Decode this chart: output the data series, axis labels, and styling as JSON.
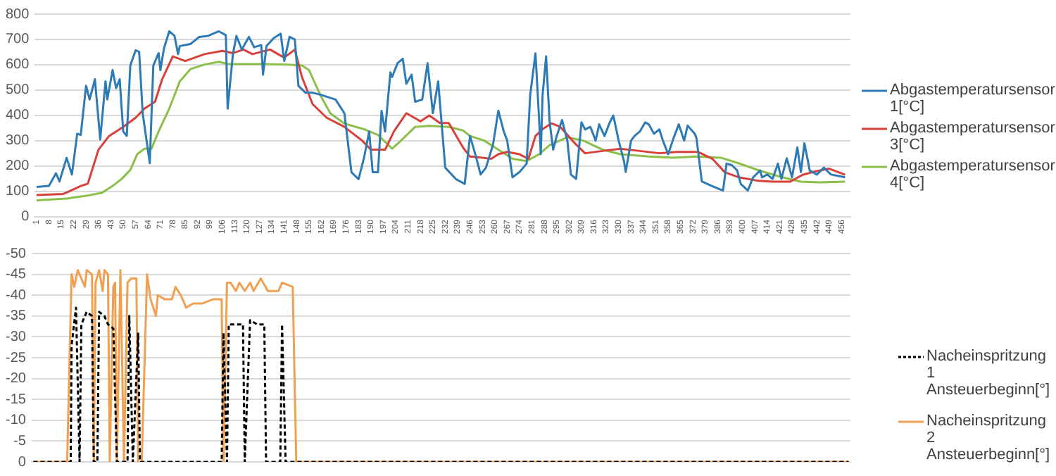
{
  "chart_data": [
    {
      "type": "line",
      "legend": "right",
      "grid": "y",
      "marker": "none",
      "xlim": [
        0,
        461
      ],
      "xticks": [
        1,
        8,
        15,
        22,
        29,
        36,
        43,
        50,
        57,
        64,
        71,
        78,
        85,
        92,
        99,
        106,
        113,
        120,
        127,
        134,
        141,
        148,
        155,
        162,
        169,
        176,
        183,
        190,
        197,
        204,
        211,
        218,
        225,
        232,
        239,
        246,
        253,
        260,
        267,
        274,
        281,
        288,
        295,
        302,
        309,
        316,
        323,
        330,
        337,
        344,
        351,
        358,
        365,
        372,
        379,
        386,
        393,
        400,
        407,
        414,
        421,
        428,
        435,
        442,
        449,
        456
      ],
      "ylim": [
        0,
        800
      ],
      "yticks": [
        0,
        100,
        200,
        300,
        400,
        500,
        600,
        700,
        800
      ],
      "series": [
        {
          "name": "Abgastemperatursensor 1[°C]",
          "color": "#2e7ab5",
          "x": [
            1,
            8,
            12,
            14,
            18,
            21,
            24,
            26,
            29,
            31,
            34,
            37,
            40,
            41,
            44,
            46,
            48,
            50,
            52,
            54,
            57,
            59,
            61,
            65,
            67,
            70,
            71,
            73,
            76,
            79,
            81,
            82,
            88,
            93,
            98,
            104,
            108,
            109,
            112,
            114,
            117,
            121,
            124,
            128,
            129,
            131,
            135,
            139,
            141,
            144,
            147,
            149,
            153,
            157,
            162,
            170,
            175,
            179,
            183,
            186,
            189,
            191,
            194,
            196,
            198,
            201,
            202,
            205,
            208,
            210,
            213,
            215,
            219,
            222,
            225,
            228,
            232,
            238,
            243,
            246,
            249,
            252,
            255,
            259,
            262,
            265,
            267,
            270,
            274,
            278,
            280,
            283,
            285,
            286,
            287,
            289,
            291,
            293,
            295,
            298,
            301,
            303,
            306,
            309,
            311,
            314,
            317,
            319,
            322,
            325,
            327,
            330,
            333,
            334,
            337,
            339,
            342,
            345,
            347,
            350,
            353,
            355,
            358,
            361,
            364,
            367,
            369,
            373,
            374,
            377,
            382,
            389,
            391,
            394,
            397,
            399,
            403,
            406,
            410,
            411,
            414,
            417,
            420,
            422,
            425,
            428,
            431,
            433,
            435,
            438,
            442,
            446,
            450,
            458
          ],
          "values": [
            118,
            122,
            172,
            140,
            233,
            167,
            328,
            323,
            517,
            463,
            543,
            305,
            535,
            463,
            579,
            508,
            543,
            337,
            319,
            597,
            657,
            651,
            409,
            212,
            597,
            646,
            579,
            664,
            732,
            714,
            642,
            674,
            682,
            710,
            714,
            732,
            717,
            427,
            642,
            714,
            660,
            710,
            669,
            678,
            561,
            674,
            705,
            723,
            615,
            710,
            700,
            517,
            490,
            490,
            481,
            463,
            409,
            176,
            149,
            230,
            337,
            176,
            176,
            418,
            337,
            570,
            552,
            606,
            624,
            525,
            561,
            454,
            463,
            606,
            409,
            535,
            194,
            149,
            130,
            319,
            247,
            167,
            194,
            285,
            419,
            339,
            301,
            156,
            177,
            210,
            480,
            645,
            391,
            247,
            480,
            633,
            373,
            265,
            319,
            382,
            301,
            167,
            150,
            373,
            345,
            355,
            301,
            365,
            319,
            373,
            400,
            301,
            220,
            177,
            301,
            319,
            337,
            373,
            365,
            328,
            345,
            301,
            247,
            310,
            365,
            301,
            360,
            328,
            310,
            140,
            124,
            104,
            210,
            204,
            183,
            130,
            104,
            156,
            183,
            156,
            167,
            150,
            210,
            150,
            231,
            156,
            274,
            177,
            290,
            183,
            167,
            194,
            167,
            156
          ]
        },
        {
          "name": "Abgastemperatursensor 3[°C]",
          "color": "#d9403a",
          "x": [
            1,
            16,
            26,
            30,
            36,
            42,
            50,
            57,
            62,
            68,
            72,
            78,
            85,
            96,
            106,
            112,
            118,
            123,
            133,
            141,
            147,
            151,
            157,
            165,
            175,
            185,
            190,
            198,
            203,
            210,
            218,
            223,
            229,
            234,
            242,
            246,
            251,
            258,
            262,
            267,
            274,
            279,
            283,
            287,
            292,
            297,
            305,
            311,
            321,
            331,
            342,
            353,
            363,
            375,
            383,
            390,
            398,
            409,
            417,
            427,
            434,
            441,
            449,
            458
          ],
          "values": [
            86,
            90,
            122,
            131,
            265,
            319,
            355,
            391,
            427,
            454,
            543,
            633,
            615,
            642,
            655,
            646,
            660,
            642,
            660,
            628,
            660,
            552,
            445,
            391,
            355,
            301,
            265,
            265,
            337,
            409,
            377,
            400,
            370,
            370,
            274,
            238,
            235,
            229,
            247,
            256,
            247,
            229,
            319,
            346,
            369,
            355,
            292,
            251,
            260,
            269,
            260,
            251,
            256,
            256,
            229,
            176,
            156,
            142,
            139,
            139,
            166,
            179,
            190,
            166
          ]
        },
        {
          "name": "Abgastemperatursensor 4[°C]",
          "color": "#8cbf4a",
          "x": [
            1,
            18,
            29,
            38,
            44,
            49,
            54,
            58,
            62,
            66,
            70,
            76,
            82,
            88,
            96,
            104,
            109,
            128,
            143,
            151,
            155,
            162,
            167,
            175,
            186,
            194,
            202,
            207,
            215,
            223,
            234,
            242,
            246,
            254,
            262,
            270,
            278,
            285,
            291,
            301,
            310,
            321,
            331,
            347,
            361,
            374,
            388,
            398,
            409,
            422,
            433,
            443,
            458
          ],
          "values": [
            65,
            72,
            83,
            95,
            122,
            149,
            185,
            248,
            269,
            269,
            337,
            427,
            535,
            583,
            601,
            612,
            603,
            603,
            601,
            597,
            579,
            472,
            409,
            368,
            346,
            323,
            269,
            301,
            355,
            359,
            355,
            341,
            319,
            301,
            265,
            229,
            220,
            247,
            283,
            314,
            301,
            265,
            247,
            238,
            233,
            238,
            233,
            211,
            184,
            157,
            139,
            136,
            139
          ]
        }
      ]
    },
    {
      "type": "line",
      "legend": "bottom right",
      "grid": "y",
      "marker": "none",
      "tick_labels": "y",
      "xlim": [
        0,
        461
      ],
      "ylim": [
        0,
        -50
      ],
      "yticks": [
        0,
        -5,
        -10,
        -15,
        -20,
        -25,
        -30,
        -35,
        -40,
        -45,
        -50
      ],
      "series": [
        {
          "name": "Nacheinspritzung 1 Ansteuerbeginn[°]",
          "color": "#000000",
          "line_style": "dashed",
          "x": [
            1,
            22,
            22.5,
            25,
            27,
            28,
            31,
            34,
            35,
            37,
            38,
            41,
            43,
            46,
            48,
            54,
            55,
            57,
            60,
            61,
            107,
            108,
            110,
            111,
            119,
            120,
            123,
            127,
            131,
            132,
            140,
            141,
            143,
            460
          ],
          "values": [
            0,
            0,
            -28,
            -37,
            0,
            -33,
            -36,
            -35,
            0,
            0,
            -36,
            -35,
            -33,
            -32,
            0,
            0,
            -35,
            0,
            -31,
            0,
            0,
            -31,
            0,
            -33,
            -33,
            0,
            -34,
            -33,
            -33,
            0,
            0,
            -33,
            0,
            0
          ]
        },
        {
          "name": "Nacheinspritzung 2 Ansteuerbeginn[°]",
          "color": "#f0a050",
          "x": [
            1,
            20,
            22.5,
            24,
            26,
            30,
            31,
            34,
            35,
            36,
            38,
            40,
            41,
            43,
            44,
            46,
            47,
            48,
            50,
            52,
            54,
            56,
            59,
            60,
            62,
            65,
            67,
            70,
            71,
            75,
            79,
            81,
            84,
            87,
            91,
            96,
            102,
            107,
            108,
            110,
            112,
            115,
            117,
            120,
            123,
            125,
            129,
            133,
            139,
            141,
            147,
            149,
            460
          ],
          "values": [
            0,
            0,
            -45,
            -42,
            -46,
            -42,
            -46,
            -45,
            0,
            -43,
            -46,
            -41,
            -46,
            -45,
            0,
            -42,
            -43,
            0,
            -46,
            0,
            -43,
            -44,
            -44,
            0,
            0,
            -45,
            -39,
            -35,
            -40,
            -39,
            -39,
            -42,
            -40,
            -37,
            -38,
            -38,
            -39,
            -39,
            0,
            -43,
            -43,
            -41,
            -43,
            -41,
            -43,
            -41,
            -44,
            -41,
            -41,
            -43,
            -42,
            0,
            0
          ]
        }
      ]
    }
  ]
}
